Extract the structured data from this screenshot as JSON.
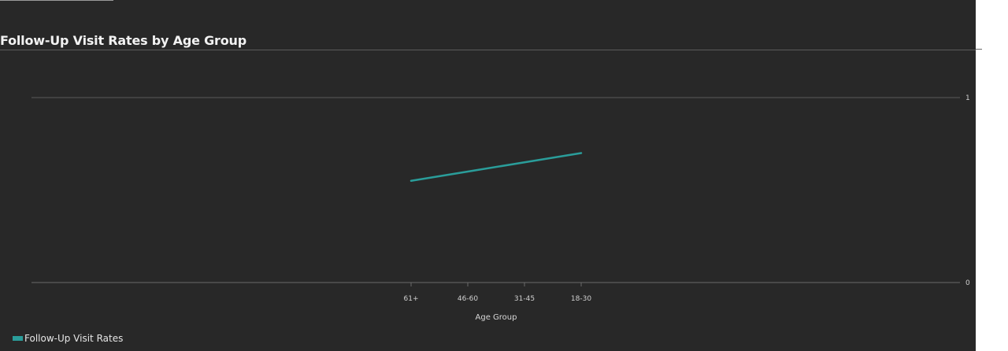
{
  "chart": {
    "title": "Follow-Up Visit Rates by Age Group",
    "legend_label": "Follow-Up Visit Rates"
  },
  "chart_data": {
    "type": "line",
    "title": "Follow-Up Visit Rates by Age Group",
    "xlabel": "Age Group",
    "ylabel": "",
    "categories": [
      "61+",
      "46-60",
      "31-45",
      "18-30"
    ],
    "series": [
      {
        "name": "Follow-Up Visit Rates",
        "values": [
          0.55,
          0.6,
          0.65,
          0.7
        ],
        "color": "#2a9d9a"
      }
    ],
    "ylim": [
      0,
      1
    ],
    "yticks": [
      0,
      1
    ],
    "y_axis_position": "right",
    "grid": true,
    "legend_position": "bottom-left",
    "colors": {
      "background": "#282828",
      "gridline": "#5a5a5a",
      "series": "#2a9d9a"
    }
  }
}
